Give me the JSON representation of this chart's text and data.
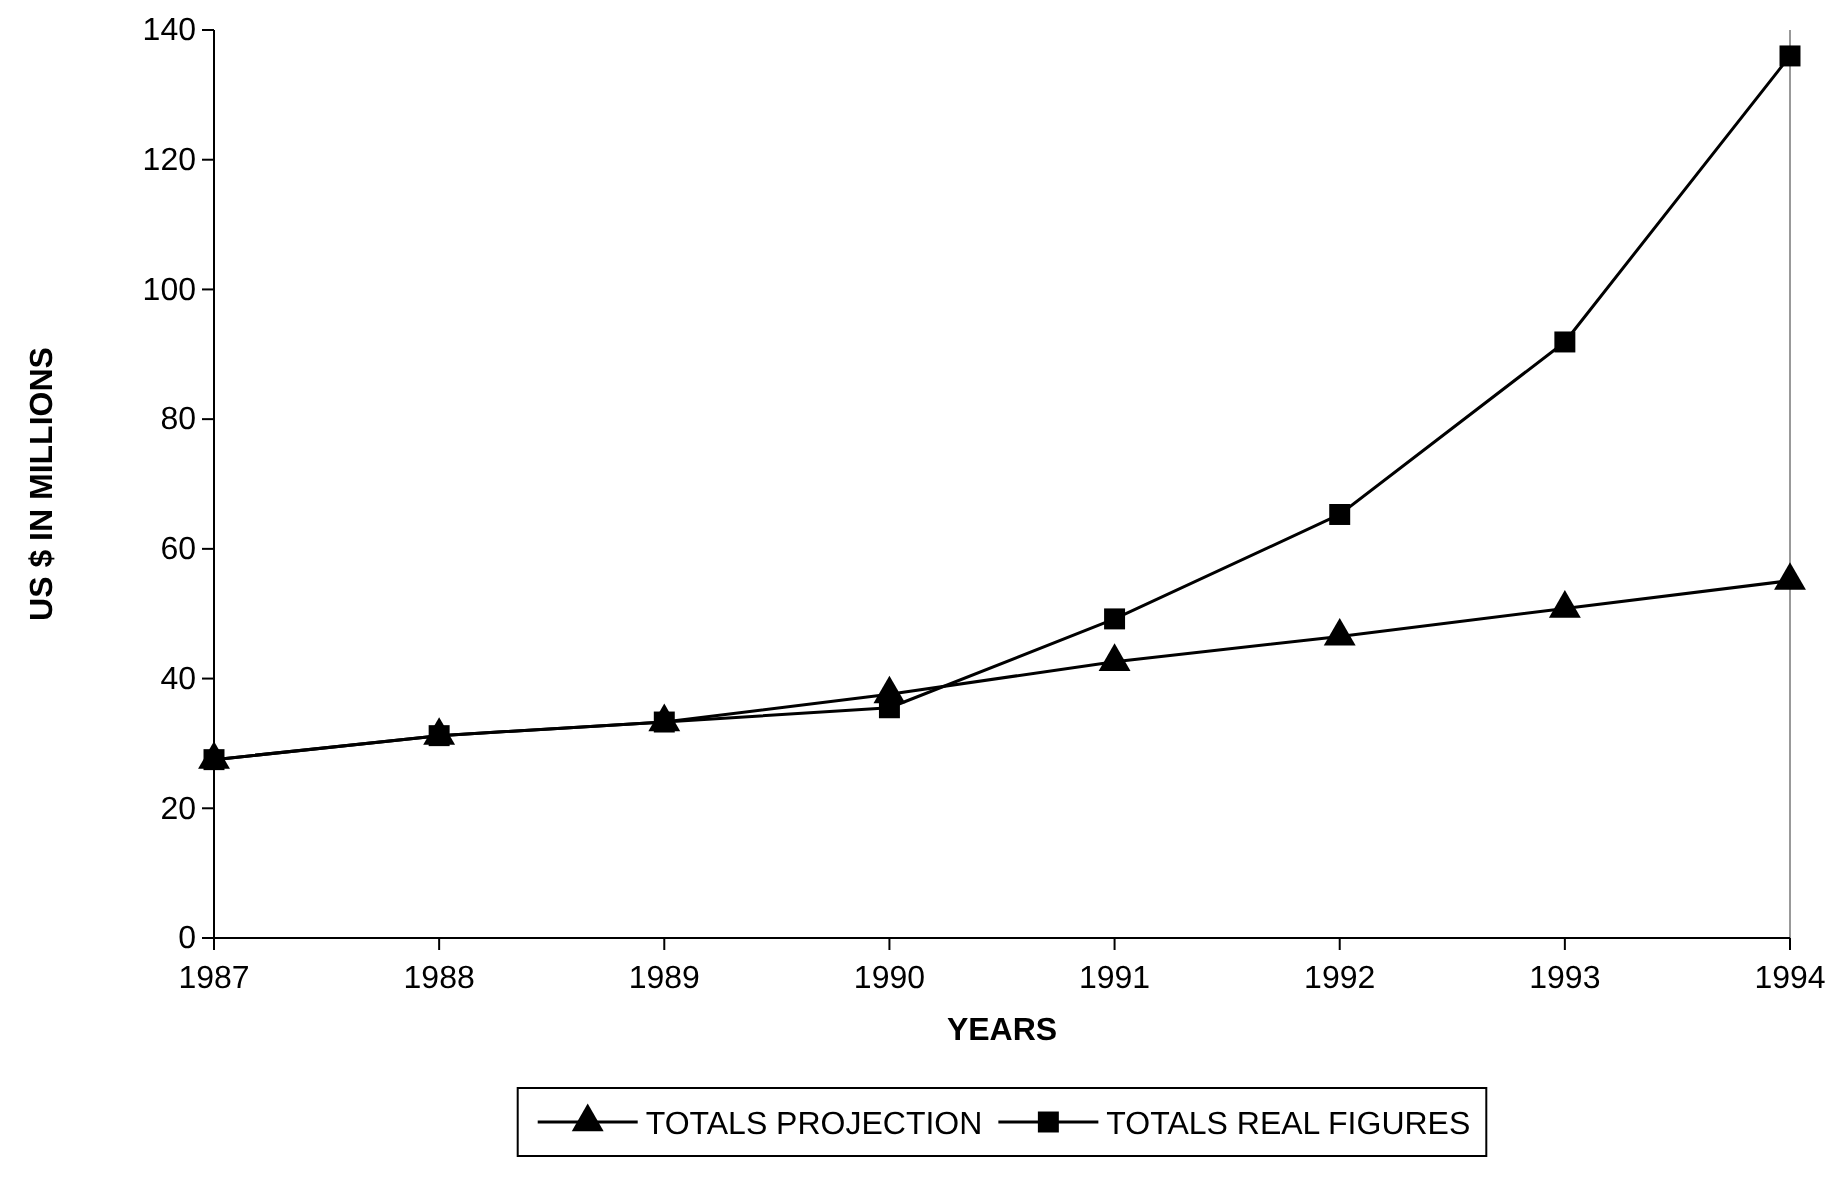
{
  "chart_data": {
    "type": "line",
    "xlabel": "YEARS",
    "ylabel": "US $ IN MILLIONS",
    "categories": [
      "1987",
      "1988",
      "1989",
      "1990",
      "1991",
      "1992",
      "1993",
      "1994"
    ],
    "series": [
      {
        "name": "TOTALS PROJECTION",
        "color": "#000000",
        "marker": "triangle",
        "values": [
          27.5,
          31.2,
          33.3,
          37.6,
          42.6,
          46.5,
          50.8,
          55.1
        ]
      },
      {
        "name": "TOTALS REAL FIGURES",
        "color": "#000000",
        "marker": "square",
        "values": [
          27.5,
          31.2,
          33.3,
          35.5,
          49.2,
          65.3,
          91.9,
          136
        ]
      }
    ],
    "ylim": [
      0,
      140
    ],
    "yticks": [
      0,
      20,
      40,
      60,
      80,
      100,
      120,
      140
    ],
    "grid": false,
    "legend": "bottom",
    "line_style": "solid"
  }
}
